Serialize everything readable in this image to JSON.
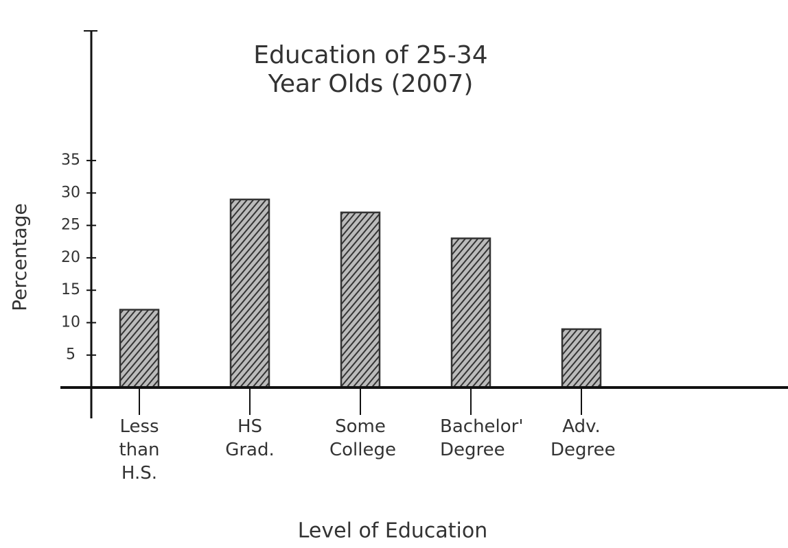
{
  "chart_data": {
    "type": "bar",
    "title": "Education of 25-34 Year Olds (2007)",
    "x_label": "Level of Education",
    "y_label": "Percentage",
    "categories": [
      "Less than H.S.",
      "HS Grad.",
      "Some College",
      "Bachelor's Degree",
      "Adv. Degree"
    ],
    "values": [
      12,
      29,
      27,
      23,
      9
    ],
    "color": "#333333",
    "ylim": [
      0,
      55
    ],
    "yticks": [
      5,
      10,
      15,
      20,
      25,
      30,
      35
    ],
    "grid": false
  }
}
